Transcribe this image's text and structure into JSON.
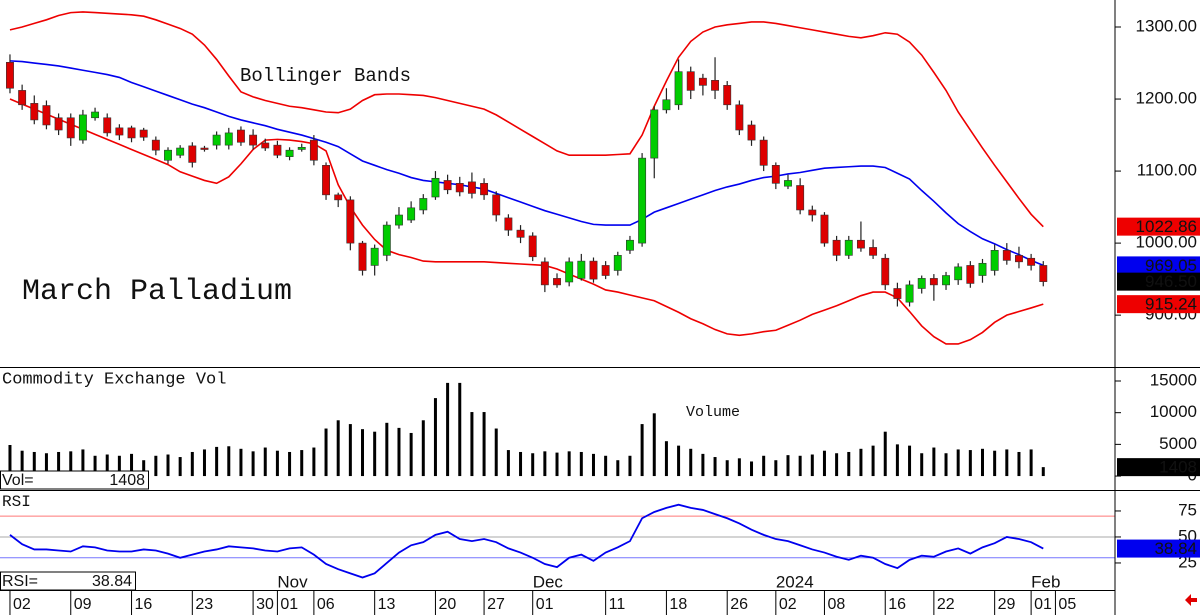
{
  "chart_data": [
    {
      "type": "candlestick",
      "title": "March Palladium",
      "annotation": "Bollinger Bands",
      "up_color": "#00cc00",
      "down_color": "#dd0000",
      "open": [
        1251,
        1212,
        1194,
        1191,
        1174,
        1174,
        1143,
        1174,
        1174,
        1160,
        1160,
        1157,
        1143,
        1115,
        1122,
        1135,
        1132,
        1136,
        1136,
        1157,
        1150,
        1139,
        1136,
        1120,
        1130,
        1143,
        1108,
        1067,
        1060,
        1000,
        969,
        983,
        1025,
        1032,
        1046,
        1064,
        1087,
        1083,
        1085,
        1083,
        1067,
        1035,
        1018,
        1010,
        974,
        951,
        946,
        951,
        975,
        969,
        962,
        990,
        1000,
        1118,
        1185,
        1192,
        1238,
        1229,
        1226,
        1219,
        1192,
        1164,
        1143,
        1108,
        1079,
        1080,
        1046,
        1039,
        1004,
        983,
        1004,
        994,
        979,
        937,
        918,
        937,
        951,
        942,
        949,
        969,
        955,
        962,
        990,
        983,
        979,
        969
      ],
      "high": [
        1262,
        1220,
        1205,
        1198,
        1180,
        1180,
        1185,
        1188,
        1180,
        1165,
        1163,
        1160,
        1148,
        1133,
        1136,
        1140,
        1135,
        1155,
        1160,
        1162,
        1158,
        1145,
        1142,
        1133,
        1138,
        1150,
        1112,
        1070,
        1065,
        1003,
        998,
        1030,
        1050,
        1058,
        1068,
        1100,
        1095,
        1092,
        1098,
        1090,
        1072,
        1040,
        1025,
        1015,
        980,
        958,
        980,
        985,
        980,
        975,
        988,
        1010,
        1125,
        1190,
        1215,
        1255,
        1245,
        1235,
        1258,
        1225,
        1198,
        1170,
        1148,
        1112,
        1095,
        1090,
        1052,
        1043,
        1010,
        1010,
        1030,
        1005,
        985,
        945,
        948,
        955,
        957,
        960,
        972,
        975,
        978,
        998,
        1000,
        995,
        985,
        975
      ],
      "low": [
        1208,
        1185,
        1165,
        1158,
        1150,
        1135,
        1138,
        1170,
        1148,
        1143,
        1140,
        1142,
        1122,
        1110,
        1118,
        1105,
        1127,
        1130,
        1130,
        1135,
        1130,
        1128,
        1118,
        1115,
        1127,
        1108,
        1060,
        1050,
        990,
        955,
        955,
        975,
        1020,
        1028,
        1040,
        1060,
        1068,
        1065,
        1062,
        1060,
        1030,
        1010,
        1000,
        975,
        932,
        938,
        940,
        948,
        945,
        950,
        955,
        985,
        995,
        1090,
        1180,
        1185,
        1200,
        1205,
        1200,
        1185,
        1150,
        1135,
        1100,
        1075,
        1075,
        1040,
        1030,
        995,
        975,
        978,
        988,
        978,
        935,
        912,
        912,
        930,
        920,
        935,
        942,
        938,
        945,
        955,
        970,
        965,
        962,
        940
      ],
      "close": [
        1215,
        1192,
        1171,
        1164,
        1157,
        1146,
        1178,
        1182,
        1153,
        1150,
        1146,
        1147,
        1129,
        1129,
        1132,
        1112,
        1130,
        1150,
        1153,
        1140,
        1136,
        1132,
        1122,
        1129,
        1133,
        1115,
        1067,
        1060,
        1000,
        962,
        993,
        1025,
        1039,
        1049,
        1062,
        1090,
        1074,
        1071,
        1069,
        1067,
        1039,
        1018,
        1008,
        981,
        942,
        942,
        974,
        975,
        950,
        955,
        983,
        1004,
        1118,
        1185,
        1199,
        1238,
        1212,
        1219,
        1212,
        1192,
        1157,
        1143,
        1108,
        1083,
        1087,
        1046,
        1039,
        1000,
        983,
        1004,
        993,
        983,
        942,
        923,
        942,
        951,
        942,
        955,
        967,
        944,
        972,
        990,
        976,
        974,
        969,
        946.5
      ],
      "close_label": "946.50",
      "series": [
        {
          "color": "#ee0000",
          "values": [
            1296,
            1300,
            1305,
            1310,
            1316,
            1320,
            1321,
            1320,
            1319,
            1318,
            1317,
            1315,
            1310,
            1304,
            1298,
            1290,
            1275,
            1255,
            1232,
            1210,
            1203,
            1198,
            1194,
            1190,
            1188,
            1185,
            1182,
            1181,
            1186,
            1198,
            1206,
            1207,
            1207,
            1206,
            1205,
            1202,
            1198,
            1194,
            1190,
            1186,
            1178,
            1168,
            1158,
            1148,
            1138,
            1128,
            1122,
            1122,
            1122,
            1122,
            1123,
            1124,
            1150,
            1190,
            1225,
            1258,
            1280,
            1293,
            1300,
            1303,
            1305,
            1307,
            1307,
            1305,
            1302,
            1299,
            1296,
            1293,
            1290,
            1287,
            1285,
            1288,
            1292,
            1290,
            1279,
            1261,
            1237,
            1212,
            1182,
            1157,
            1132,
            1108,
            1085,
            1062,
            1040,
            1022.86
          ]
        },
        {
          "color": "#0000ee",
          "values": [
            1253,
            1252,
            1250,
            1248,
            1246,
            1243,
            1240,
            1237,
            1234,
            1230,
            1223,
            1217,
            1211,
            1205,
            1199,
            1193,
            1188,
            1182,
            1176,
            1171,
            1167,
            1163,
            1158,
            1154,
            1150,
            1145,
            1140,
            1134,
            1124,
            1114,
            1108,
            1102,
            1097,
            1091,
            1087,
            1085,
            1083,
            1081,
            1078,
            1075,
            1069,
            1063,
            1057,
            1051,
            1045,
            1040,
            1035,
            1030,
            1026,
            1025,
            1025,
            1025,
            1033,
            1043,
            1049,
            1055,
            1061,
            1067,
            1073,
            1078,
            1082,
            1087,
            1091,
            1093,
            1096,
            1098,
            1101,
            1104,
            1105,
            1106,
            1107,
            1107,
            1105,
            1097,
            1089,
            1073,
            1058,
            1042,
            1027,
            1016,
            1006,
            999,
            991,
            984,
            976,
            969.05
          ]
        },
        {
          "color": "#ee0000",
          "values": [
            1200,
            1193,
            1186,
            1179,
            1172,
            1165,
            1158,
            1151,
            1144,
            1137,
            1130,
            1123,
            1116,
            1109,
            1099,
            1093,
            1087,
            1083,
            1092,
            1110,
            1130,
            1143,
            1144,
            1143,
            1141,
            1138,
            1128,
            1081,
            1050,
            1025,
            1005,
            990,
            984,
            980,
            975,
            974,
            974,
            974,
            974,
            974,
            973,
            972,
            971,
            970,
            969,
            964,
            957,
            950,
            943,
            935,
            932,
            928,
            924,
            920,
            912,
            904,
            895,
            888,
            880,
            874,
            872,
            874,
            877,
            879,
            886,
            893,
            901,
            907,
            913,
            920,
            927,
            932,
            932,
            924,
            905,
            885,
            870,
            860,
            860,
            866,
            876,
            890,
            900,
            905,
            910,
            915.24
          ]
        }
      ],
      "ylim": [
        828,
        1337.5
      ],
      "yticks": [
        {
          "value": 900,
          "label": "900.00"
        },
        {
          "value": 1000,
          "label": "1000.00"
        },
        {
          "value": 1100,
          "label": "1100.00"
        },
        {
          "value": 1200,
          "label": "1200.00"
        },
        {
          "value": 1300,
          "label": "1300.00"
        }
      ],
      "xlim": [
        -0.82,
        90.9
      ],
      "xticks": [
        {
          "value": 0,
          "label": "02"
        },
        {
          "value": 5,
          "label": "09"
        },
        {
          "value": 10,
          "label": "16"
        },
        {
          "value": 15,
          "label": "23"
        },
        {
          "value": 20,
          "label": "30"
        },
        {
          "value": 22,
          "label": "01"
        },
        {
          "value": 25,
          "label": "06"
        },
        {
          "value": 30,
          "label": "13"
        },
        {
          "value": 35,
          "label": "20"
        },
        {
          "value": 39,
          "label": "27"
        },
        {
          "value": 43,
          "label": "01"
        },
        {
          "value": 49,
          "label": "11"
        },
        {
          "value": 54,
          "label": "18"
        },
        {
          "value": 59,
          "label": "26"
        },
        {
          "value": 63,
          "label": "02"
        },
        {
          "value": 67,
          "label": "08"
        },
        {
          "value": 72,
          "label": "16"
        },
        {
          "value": 76,
          "label": "22"
        },
        {
          "value": 81,
          "label": "29"
        },
        {
          "value": 84,
          "label": "01"
        },
        {
          "value": 86,
          "label": "05"
        }
      ],
      "month_ticks": [
        {
          "value": 22,
          "label": "Nov"
        },
        {
          "value": 43,
          "label": "Dec"
        },
        {
          "value": 63,
          "label": "2024"
        },
        {
          "value": 84,
          "label": "Feb"
        }
      ]
    },
    {
      "type": "bar",
      "title": "Commodity Exchange Vol",
      "annotation": "Volume",
      "readout_label": "Vol=",
      "color": "#000000",
      "values": [
        4900,
        4000,
        3800,
        3600,
        3800,
        3900,
        4200,
        3200,
        3400,
        3200,
        3500,
        2500,
        3200,
        3400,
        3000,
        3800,
        4200,
        4600,
        4700,
        4300,
        3900,
        4500,
        4000,
        3800,
        4100,
        4500,
        7500,
        8800,
        8200,
        7400,
        7000,
        8400,
        7600,
        6800,
        8800,
        12300,
        14700,
        14700,
        10100,
        10100,
        7500,
        4100,
        3800,
        3600,
        3900,
        3700,
        3900,
        3800,
        3500,
        3200,
        2500,
        3200,
        8200,
        9900,
        5500,
        4800,
        4300,
        3500,
        3000,
        2500,
        2800,
        2300,
        3200,
        2500,
        3300,
        3200,
        3400,
        4000,
        3600,
        3800,
        4300,
        4800,
        7000,
        5000,
        4800,
        3600,
        4500,
        3600,
        4200,
        4100,
        4300,
        4000,
        4200,
        3800,
        4200,
        1408
      ],
      "ylim": [
        -2200,
        17050
      ],
      "yticks": [
        0,
        5000,
        10000,
        15000
      ]
    },
    {
      "type": "line",
      "title": "RSI",
      "readout_label": "RSI=",
      "color": "#0000ee",
      "values": [
        52,
        43,
        38,
        38,
        37,
        36,
        41,
        40,
        37,
        36,
        36,
        38,
        37,
        34,
        30,
        33,
        36,
        38,
        41,
        40,
        39,
        37,
        36,
        39,
        40,
        33,
        24,
        19,
        15,
        11,
        15,
        25,
        35,
        42,
        45,
        52,
        55,
        48,
        46,
        48,
        45,
        39,
        35,
        30,
        24,
        21,
        30,
        33,
        27,
        35,
        40,
        46,
        68,
        74,
        78,
        81,
        78,
        76,
        72,
        68,
        63,
        57,
        52,
        48,
        46,
        42,
        38,
        35,
        31,
        28,
        32,
        30,
        24,
        20,
        28,
        32,
        31,
        36,
        39,
        34,
        40,
        44,
        50,
        48,
        45,
        38.84
      ],
      "ref_lines": [
        {
          "value": 70,
          "color": "#ff7777"
        },
        {
          "value": 50,
          "color": "#aaaaaa"
        },
        {
          "value": 30,
          "color": "#7777ff"
        }
      ],
      "ylim": [
        -1,
        94.2
      ],
      "yticks": [
        25,
        50,
        75
      ]
    }
  ]
}
